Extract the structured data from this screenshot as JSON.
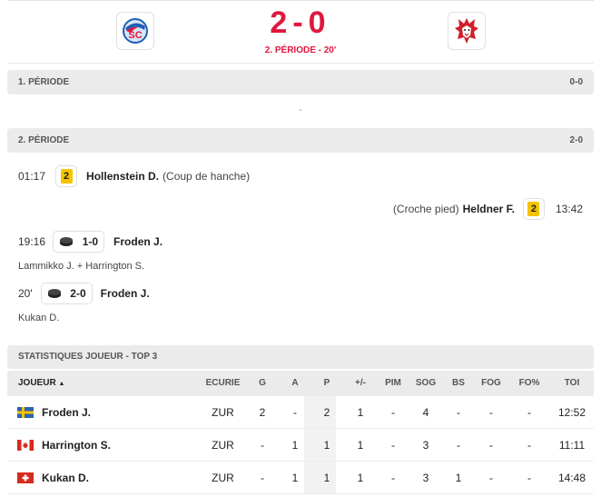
{
  "game": {
    "score": "2-0",
    "status": "2. PÉRIODE - 20'",
    "home_logo": "zsc-lions-logo",
    "away_logo": "lausanne-hc-lion-logo",
    "accent_color": "#e0173f"
  },
  "periods": [
    {
      "label": "1. PÉRIODE",
      "score": "0-0",
      "empty": "-"
    },
    {
      "label": "2. PÉRIODE",
      "score": "2-0"
    }
  ],
  "events": {
    "e1": {
      "time": "01:17",
      "penalty": "2",
      "player": "Hollenstein D.",
      "reason": "(Coup de hanche)"
    },
    "e2": {
      "time": "13:42",
      "penalty": "2",
      "player": "Heldner F.",
      "reason": "(Croche pied)"
    },
    "e3": {
      "time": "19:16",
      "score": "1-0",
      "player": "Froden J.",
      "assists": "Lammikko J. + Harrington S."
    },
    "e4": {
      "time": "20'",
      "score": "2-0",
      "player": "Froden J.",
      "assists": "Kukan D."
    }
  },
  "stats": {
    "title": "STATISTIQUES JOUEUR - TOP 3",
    "headers": {
      "joueur": "JOUEUR",
      "sort_indicator": "▲",
      "ecurie": "ECURIE",
      "g": "G",
      "a": "A",
      "p": "P",
      "pm": "+/-",
      "pim": "PIM",
      "sog": "SOG",
      "bs": "BS",
      "fog": "FOG",
      "fo": "FO%",
      "toi": "TOI"
    },
    "rows": [
      {
        "flag": "sweden",
        "name": "Froden J.",
        "team": "ZUR",
        "g": "2",
        "a": "-",
        "p": "2",
        "pm": "1",
        "pim": "-",
        "sog": "4",
        "bs": "-",
        "fog": "-",
        "fo": "-",
        "toi": "12:52"
      },
      {
        "flag": "canada",
        "name": "Harrington S.",
        "team": "ZUR",
        "g": "-",
        "a": "1",
        "p": "1",
        "pm": "1",
        "pim": "-",
        "sog": "3",
        "bs": "-",
        "fog": "-",
        "fo": "-",
        "toi": "11:11"
      },
      {
        "flag": "switzerland",
        "name": "Kukan D.",
        "team": "ZUR",
        "g": "-",
        "a": "1",
        "p": "1",
        "pm": "1",
        "pim": "-",
        "sog": "3",
        "bs": "1",
        "fog": "-",
        "fo": "-",
        "toi": "14:48"
      }
    ]
  }
}
